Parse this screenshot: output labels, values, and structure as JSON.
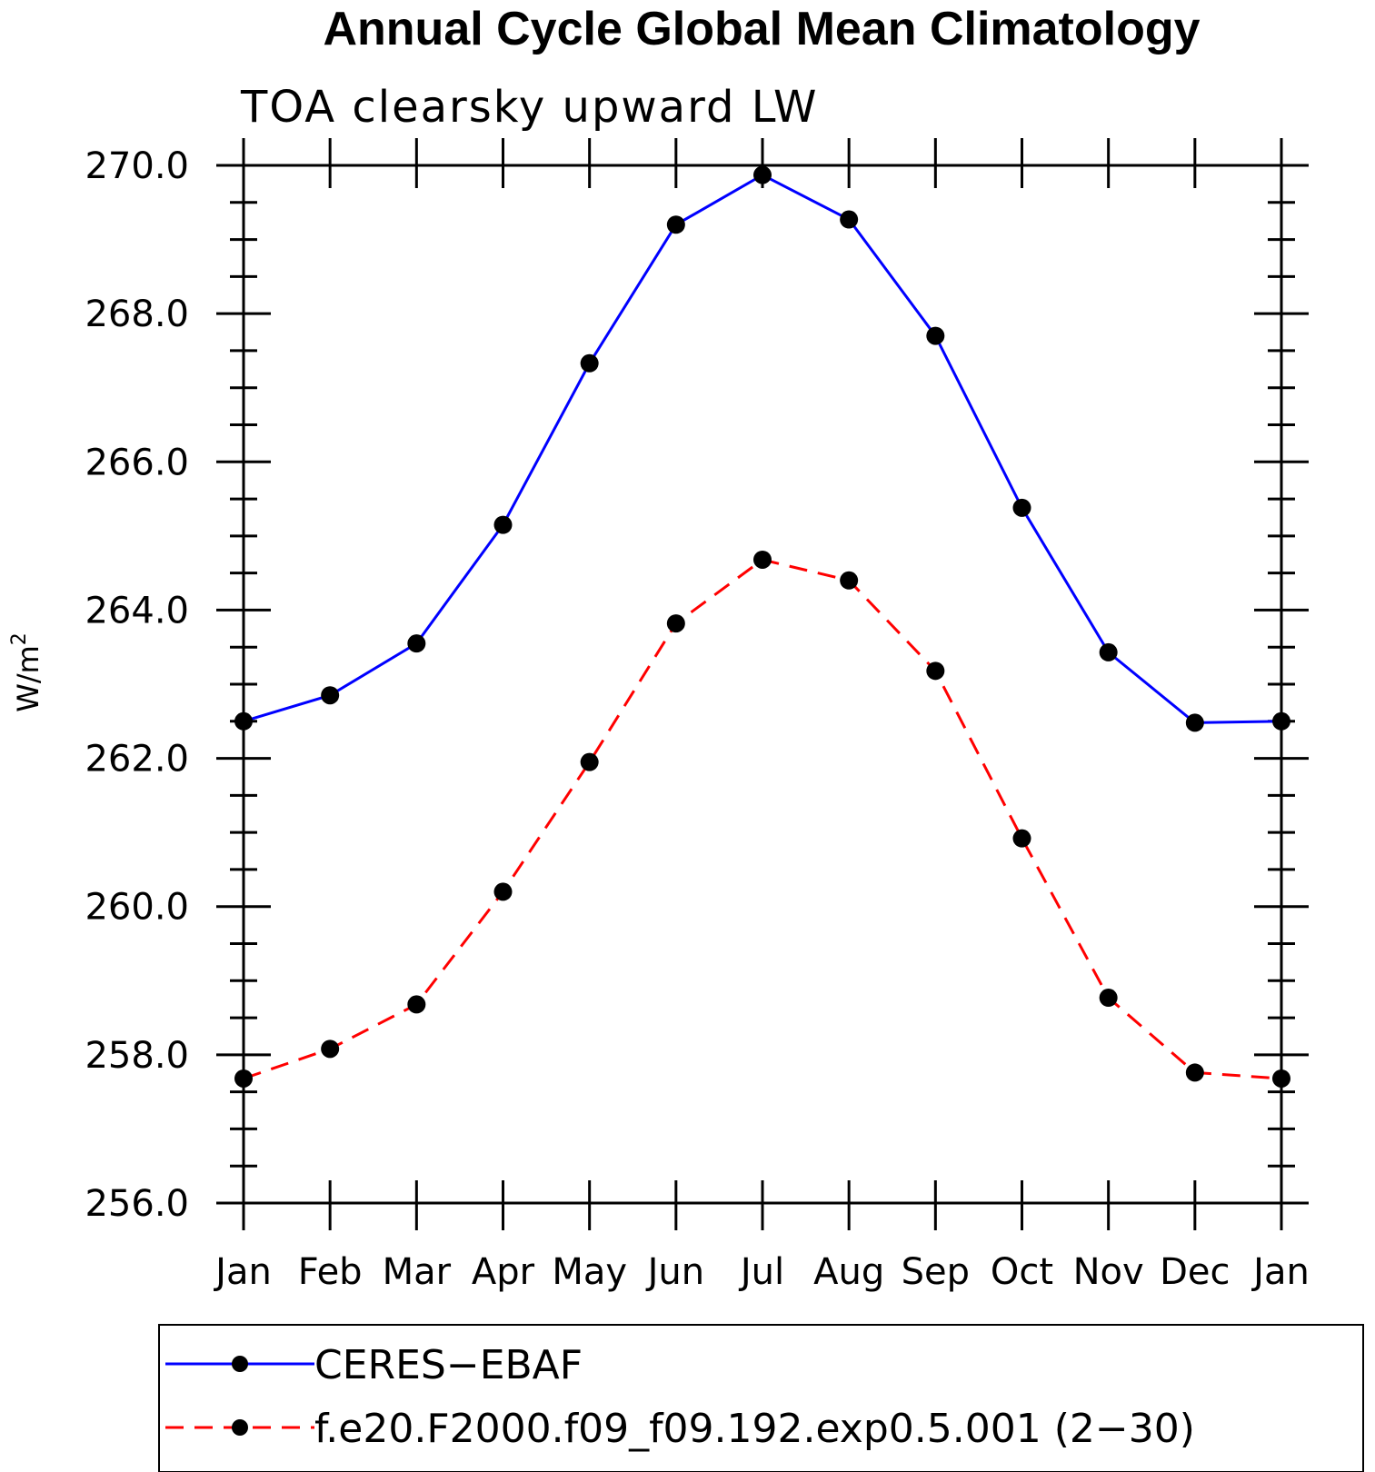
{
  "chart_data": {
    "type": "line",
    "title": "Annual Cycle Global Mean Climatology",
    "subtitle": "TOA clearsky upward LW",
    "ylabel": "W/m",
    "ylabel_superscript": "2",
    "xlabel": "",
    "categories": [
      "Jan",
      "Feb",
      "Mar",
      "Apr",
      "May",
      "Jun",
      "Jul",
      "Aug",
      "Sep",
      "Oct",
      "Nov",
      "Dec",
      "Jan"
    ],
    "ylim": [
      256.0,
      270.0
    ],
    "yticks": [
      "256.0",
      "258.0",
      "260.0",
      "262.0",
      "264.0",
      "266.0",
      "268.0",
      "270.0"
    ],
    "grid": false,
    "legend_position": "bottom",
    "series": [
      {
        "name": "CERES−EBAF",
        "color": "#0000ff",
        "line_style": "solid",
        "marker": "filled-circle",
        "values": [
          262.5,
          262.85,
          263.55,
          265.15,
          267.33,
          269.2,
          269.87,
          269.27,
          267.7,
          265.38,
          263.43,
          262.48,
          262.5
        ]
      },
      {
        "name": "f.e20.F2000.f09_f09.192.exp0.5.001 (2−30)",
        "color": "#ff0000",
        "line_style": "dashed",
        "marker": "filled-circle",
        "values": [
          257.68,
          258.08,
          258.68,
          260.2,
          261.95,
          263.82,
          264.68,
          264.4,
          263.18,
          260.92,
          258.77,
          257.76,
          257.68
        ]
      }
    ]
  }
}
